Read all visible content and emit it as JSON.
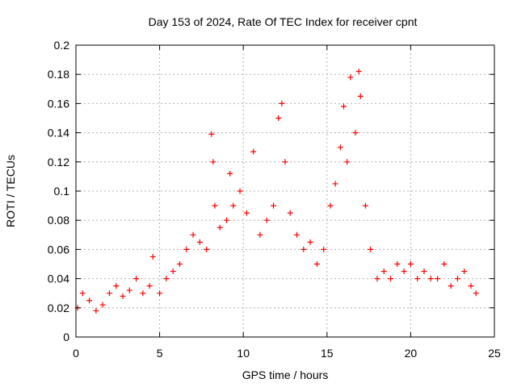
{
  "chart_data": {
    "type": "scatter",
    "title": "Day 153 of 2024, Rate Of TEC Index for receiver cpnt",
    "xlabel": "GPS time / hours",
    "ylabel": "ROTI / TECUs",
    "xlim": [
      0,
      25
    ],
    "ylim": [
      0,
      0.2
    ],
    "x_ticks": [
      0,
      5,
      10,
      15,
      20,
      25
    ],
    "x_tick_labels": [
      "0",
      "5",
      "10",
      "15",
      "20",
      "25"
    ],
    "y_ticks": [
      0,
      0.02,
      0.04,
      0.06,
      0.08,
      0.1,
      0.12,
      0.14,
      0.16,
      0.18,
      0.2
    ],
    "y_tick_labels": [
      "0",
      "0.02",
      "0.04",
      "0.06",
      "0.08",
      "0.1",
      "0.12",
      "0.14",
      "0.16",
      "0.18",
      "0.2"
    ],
    "grid": true,
    "marker": "+",
    "marker_color": "#ff0000",
    "series": [
      {
        "x": [
          0.1,
          0.4,
          0.8,
          1.2,
          1.6,
          2.0,
          2.4,
          2.8,
          3.2,
          3.6,
          4.0,
          4.4,
          4.6,
          5.0,
          5.4,
          5.8,
          6.2,
          6.6,
          7.0,
          7.4,
          7.8,
          8.1,
          8.2,
          8.3,
          8.6,
          9.0,
          9.2,
          9.4,
          9.8,
          10.2,
          10.6,
          11.0,
          11.4,
          11.8,
          12.1,
          12.3,
          12.5,
          12.8,
          13.2,
          13.6,
          14.0,
          14.4,
          14.8,
          15.2,
          15.5,
          15.8,
          16.0,
          16.2,
          16.4,
          16.7,
          16.9,
          17.0,
          17.3,
          17.6,
          18.0,
          18.4,
          18.8,
          19.2,
          19.6,
          20.0,
          20.4,
          20.8,
          21.2,
          21.6,
          22.0,
          22.4,
          22.8,
          23.2,
          23.6,
          23.9
        ],
        "y": [
          0.02,
          0.03,
          0.025,
          0.018,
          0.022,
          0.03,
          0.035,
          0.028,
          0.032,
          0.04,
          0.03,
          0.035,
          0.055,
          0.03,
          0.04,
          0.045,
          0.05,
          0.06,
          0.07,
          0.065,
          0.06,
          0.139,
          0.12,
          0.09,
          0.075,
          0.08,
          0.112,
          0.09,
          0.1,
          0.085,
          0.127,
          0.07,
          0.08,
          0.09,
          0.15,
          0.16,
          0.12,
          0.085,
          0.07,
          0.06,
          0.065,
          0.05,
          0.06,
          0.09,
          0.105,
          0.13,
          0.158,
          0.12,
          0.178,
          0.14,
          0.182,
          0.165,
          0.09,
          0.06,
          0.04,
          0.045,
          0.04,
          0.05,
          0.045,
          0.05,
          0.04,
          0.045,
          0.04,
          0.04,
          0.05,
          0.035,
          0.04,
          0.045,
          0.035,
          0.03
        ]
      }
    ]
  }
}
